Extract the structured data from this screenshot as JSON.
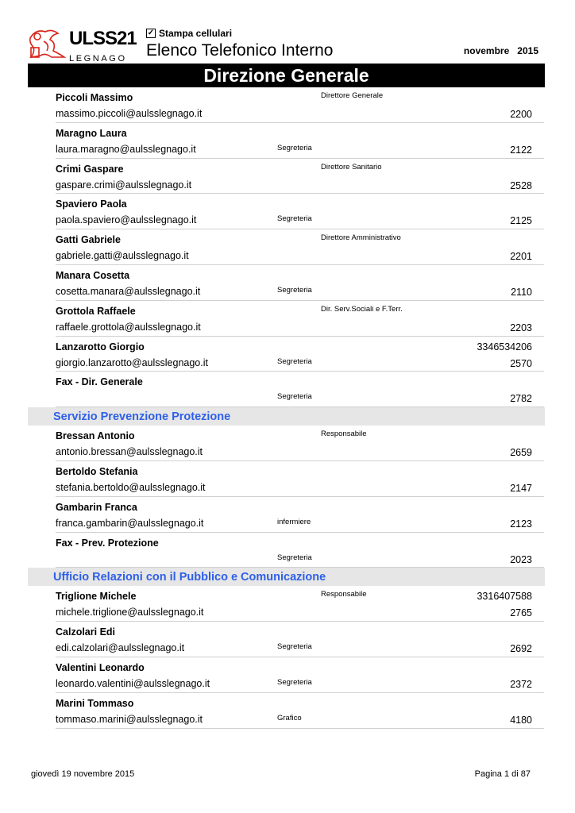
{
  "header": {
    "logo_text": "ULSS21 LEGNAGO",
    "checkbox_label": "Stampa cellulari",
    "checkbox_checked": true,
    "title": "Elenco Telefonico Interno",
    "month": "novembre",
    "year": "2015",
    "banner": "Direzione Generale"
  },
  "colors": {
    "section_text": "#2e5fe8",
    "section_bg": "#e6e6e6",
    "logo_red": "#d8241c"
  },
  "blocks": [
    {
      "type": "entries",
      "items": [
        {
          "name": "Piccoli Massimo",
          "email": "massimo.piccoli@aulsslegnago.it",
          "title": "Direttore Generale",
          "ext": "2200"
        },
        {
          "name": "Maragno Laura",
          "email": "laura.maragno@aulsslegnago.it",
          "role": "Segreteria",
          "ext": "2122"
        },
        {
          "name": "Crimi Gaspare",
          "email": "gaspare.crimi@aulsslegnago.it",
          "title": "Direttore Sanitario",
          "ext": "2528"
        },
        {
          "name": "Spaviero Paola",
          "email": "paola.spaviero@aulsslegnago.it",
          "role": "Segreteria",
          "ext": "2125"
        },
        {
          "name": "Gatti Gabriele",
          "email": "gabriele.gatti@aulsslegnago.it",
          "title": "Direttore Amministrativo",
          "ext": "2201"
        },
        {
          "name": "Manara Cosetta",
          "email": "cosetta.manara@aulsslegnago.it",
          "role": "Segreteria",
          "ext": "2110"
        },
        {
          "name": "Grottola Raffaele",
          "email": "raffaele.grottola@aulsslegnago.it",
          "title": "Dir. Serv.Sociali e F.Terr.",
          "ext": "2203"
        },
        {
          "name": "Lanzarotto Giorgio",
          "email": "giorgio.lanzarotto@aulsslegnago.it",
          "role": "Segreteria",
          "mobile": "3346534206",
          "ext": "2570"
        },
        {
          "name": "Fax - Dir. Generale",
          "role": "Segreteria",
          "ext": "2782"
        }
      ]
    },
    {
      "type": "section",
      "label": "Servizio Prevenzione Protezione"
    },
    {
      "type": "entries",
      "items": [
        {
          "name": "Bressan Antonio",
          "email": "antonio.bressan@aulsslegnago.it",
          "title": "Responsabile",
          "ext": "2659"
        },
        {
          "name": "Bertoldo Stefania",
          "email": "stefania.bertoldo@aulsslegnago.it",
          "ext": "2147"
        },
        {
          "name": "Gambarin Franca",
          "email": "franca.gambarin@aulsslegnago.it",
          "role": "infermiere",
          "ext": "2123"
        },
        {
          "name": "Fax - Prev. Protezione",
          "role": "Segreteria",
          "ext": "2023"
        }
      ]
    },
    {
      "type": "section",
      "label": "Ufficio Relazioni con il Pubblico e Comunicazione"
    },
    {
      "type": "entries",
      "items": [
        {
          "name": "Triglione Michele",
          "email": "michele.triglione@aulsslegnago.it",
          "title": "Responsabile",
          "mobile": "3316407588",
          "ext": "2765"
        },
        {
          "name": "Calzolari Edi",
          "email": "edi.calzolari@aulsslegnago.it",
          "role": "Segreteria",
          "ext": "2692"
        },
        {
          "name": "Valentini Leonardo",
          "email": "leonardo.valentini@aulsslegnago.it",
          "role": "Segreteria",
          "ext": "2372"
        },
        {
          "name": "Marini Tommaso",
          "email": "tommaso.marini@aulsslegnago.it",
          "role": "Grafico",
          "ext": "4180"
        }
      ]
    }
  ],
  "footer": {
    "date": "giovedì 19 novembre 2015",
    "page": "Pagina 1 di 87"
  }
}
